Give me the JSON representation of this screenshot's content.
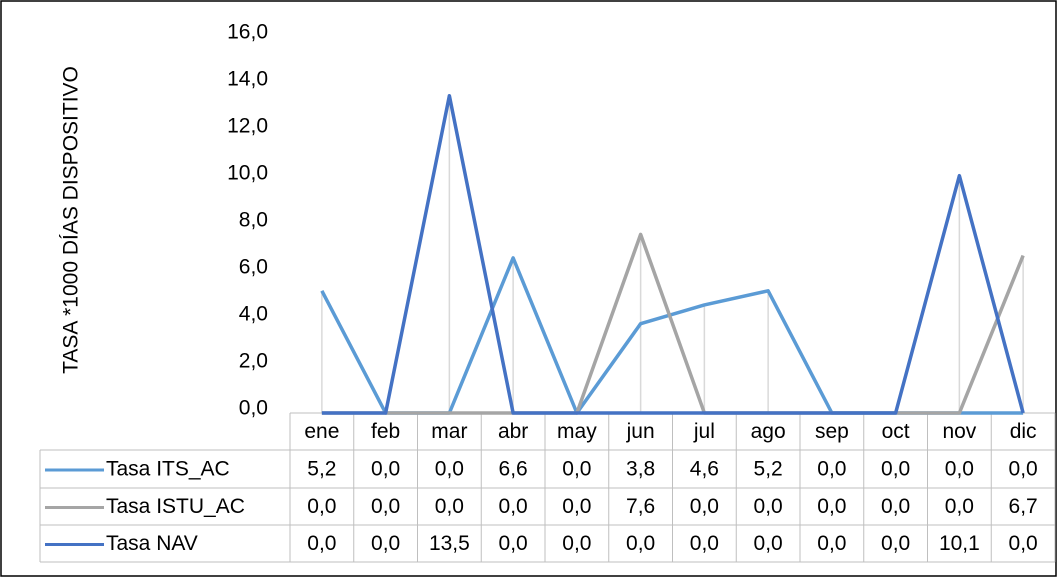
{
  "chart_data": {
    "type": "line",
    "y_axis_label": "TASA *1000 DÍAS DISPOSITIVO",
    "categories": [
      "ene",
      "feb",
      "mar",
      "abr",
      "may",
      "jun",
      "jul",
      "ago",
      "sep",
      "oct",
      "nov",
      "dic"
    ],
    "series": [
      {
        "name": "Tasa ITS_AC",
        "color": "#5b9bd5",
        "values": [
          5.2,
          0,
          0,
          6.6,
          0,
          3.8,
          4.6,
          5.2,
          0,
          0,
          0,
          0
        ],
        "value_labels": [
          "5,2",
          "0,0",
          "0,0",
          "6,6",
          "0,0",
          "3,8",
          "4,6",
          "5,2",
          "0,0",
          "0,0",
          "0,0",
          "0,0"
        ]
      },
      {
        "name": "Tasa ISTU_AC",
        "color": "#a5a5a5",
        "values": [
          0,
          0,
          0,
          0,
          0,
          7.6,
          0,
          0,
          0,
          0,
          0,
          6.7
        ],
        "value_labels": [
          "0,0",
          "0,0",
          "0,0",
          "0,0",
          "0,0",
          "7,6",
          "0,0",
          "0,0",
          "0,0",
          "0,0",
          "0,0",
          "6,7"
        ]
      },
      {
        "name": "Tasa NAV",
        "color": "#4472c4",
        "values": [
          0,
          0,
          13.5,
          0,
          0,
          0,
          0,
          0,
          0,
          0,
          10.1,
          0
        ],
        "value_labels": [
          "0,0",
          "0,0",
          "13,5",
          "0,0",
          "0,0",
          "0,0",
          "0,0",
          "0,0",
          "0,0",
          "0,0",
          "10,1",
          "0,0"
        ]
      }
    ],
    "ylim": [
      0,
      16
    ],
    "yticks": [
      {
        "value": 0,
        "label": "0,0"
      },
      {
        "value": 2,
        "label": "2,0"
      },
      {
        "value": 4,
        "label": "4,0"
      },
      {
        "value": 6,
        "label": "6,0"
      },
      {
        "value": 8,
        "label": "8,0"
      },
      {
        "value": 10,
        "label": "10,0"
      },
      {
        "value": 12,
        "label": "12,0"
      },
      {
        "value": 14,
        "label": "14,0"
      },
      {
        "value": 16,
        "label": "16,0"
      }
    ],
    "data_table": true
  }
}
